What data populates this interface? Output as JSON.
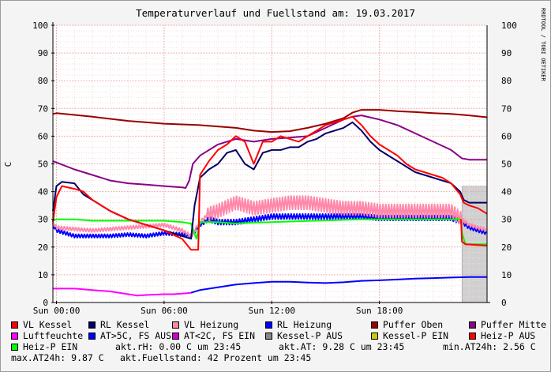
{
  "chart_data": {
    "type": "line",
    "title": "Temperaturverlauf und Fuellstand am: 19.03.2017",
    "ylabel": "C",
    "watermark": "RRDTOOL / TOBI OETIKER",
    "ylim": [
      0,
      100
    ],
    "yticks": [
      "0",
      "10",
      "20",
      "30",
      "40",
      "50",
      "60",
      "70",
      "80",
      "90",
      "100"
    ],
    "xlim": [
      -0.2,
      24
    ],
    "xticks": [
      {
        "x": 0,
        "label": "Sun 00:00"
      },
      {
        "x": 6,
        "label": "Sun 06:00"
      },
      {
        "x": 12,
        "label": "Sun 12:00"
      },
      {
        "x": 18,
        "label": "Sun 18:00"
      }
    ],
    "grid": true,
    "fuellstand_band": {
      "x0": 22.6,
      "x1": 24,
      "top": 42,
      "color": "#d0d0d0"
    },
    "series": [
      {
        "name": "Luftfeuchte",
        "color": "#ff00ff",
        "x": [
          -0.2,
          0,
          1,
          2,
          3,
          4,
          4.5,
          5,
          6,
          6.5,
          7,
          7.5
        ],
        "y": [
          5,
          5,
          5,
          4.5,
          4,
          3,
          2.5,
          2.7,
          3,
          3,
          3.2,
          3.5
        ]
      },
      {
        "name": "AT<2C, FS EIN",
        "color": "#0000ff",
        "x": [
          7.5,
          8,
          9,
          10,
          11,
          12,
          13,
          14,
          15,
          16,
          17,
          18,
          19,
          20,
          21,
          22,
          23,
          24
        ],
        "y": [
          3.5,
          4.5,
          5.5,
          6.5,
          7,
          7.5,
          7.5,
          7.2,
          7,
          7.3,
          7.8,
          8,
          8.3,
          8.6,
          8.8,
          9,
          9.2,
          9.2
        ]
      },
      {
        "name": "Puffer Oben",
        "color": "#990000",
        "x": [
          -0.2,
          0,
          2,
          4,
          6,
          8,
          10,
          11,
          12,
          13,
          14,
          15,
          16,
          16.5,
          17,
          18,
          19,
          20,
          21,
          22,
          23,
          24
        ],
        "y": [
          68,
          68.3,
          67,
          65.5,
          64.5,
          64,
          63,
          62,
          61.5,
          61.8,
          63,
          64.5,
          66.5,
          68.5,
          69.5,
          69.5,
          69,
          68.7,
          68.3,
          68,
          67.5,
          66.8
        ]
      },
      {
        "name": "Puffer Mitte",
        "color": "#880088",
        "x": [
          -0.2,
          0,
          1,
          2,
          3,
          4,
          5,
          6,
          7,
          7.2,
          7.4,
          7.6,
          8,
          9,
          10,
          11,
          12,
          13,
          14,
          15,
          16,
          16.5,
          17,
          18,
          19,
          20,
          21,
          22,
          22.6,
          23,
          24
        ],
        "y": [
          51,
          50.5,
          48,
          46,
          44,
          43,
          42.5,
          42,
          41.5,
          41.3,
          44,
          50,
          53,
          57,
          59,
          58,
          59,
          59.5,
          60,
          63,
          66,
          67,
          67.5,
          66,
          64,
          61,
          58,
          55,
          52,
          51.5,
          51.5
        ]
      },
      {
        "name": "VL Kessel",
        "color": "#ff0000",
        "x": [
          -0.2,
          0,
          0.3,
          1,
          1.5,
          2,
          3,
          4,
          5,
          6,
          7,
          7.5,
          7.9,
          8,
          8.5,
          9,
          9.5,
          10,
          10.5,
          11,
          11.5,
          12,
          12.5,
          13,
          13.5,
          14,
          14.5,
          15,
          15.5,
          16,
          16.5,
          17,
          17.5,
          18,
          18.5,
          19,
          19.5,
          20,
          20.5,
          21,
          21.5,
          22,
          22.5,
          22.7,
          23,
          23.5,
          24
        ],
        "y": [
          29,
          38,
          42,
          41,
          40,
          37,
          33,
          30,
          28,
          26,
          23,
          19,
          19,
          46,
          51,
          55,
          57,
          60,
          58,
          50,
          58,
          58,
          60,
          59,
          58,
          60,
          62,
          64,
          65,
          66,
          67,
          64,
          60,
          57,
          55,
          53,
          50,
          48,
          47,
          46,
          45,
          43,
          39,
          36,
          35,
          34,
          32
        ]
      },
      {
        "name": "RL Kessel",
        "color": "#000066",
        "x": [
          -0.2,
          0,
          0.3,
          1,
          1.5,
          2,
          3,
          4,
          5,
          6,
          7,
          7.5,
          7.7,
          8,
          8.5,
          9,
          9.5,
          10,
          10.5,
          11,
          11.5,
          12,
          12.5,
          13,
          13.5,
          14,
          14.5,
          15,
          15.5,
          16,
          16.5,
          17,
          17.5,
          18,
          18.5,
          19,
          19.5,
          20,
          20.5,
          21,
          21.5,
          22,
          22.5,
          22.7,
          23,
          23.5,
          24
        ],
        "y": [
          33,
          42,
          43.5,
          43,
          39,
          37,
          33,
          30,
          28,
          26,
          24,
          23,
          35,
          45,
          48,
          50,
          54,
          55,
          50,
          48,
          54,
          55,
          55,
          56,
          56,
          58,
          59,
          61,
          62,
          63,
          65,
          62,
          58,
          55,
          53,
          51,
          49,
          47,
          46,
          45,
          44,
          43,
          40,
          37,
          36,
          36,
          36
        ]
      },
      {
        "name": "VL Heizung",
        "color": "#ff88aa",
        "osc": true,
        "x": [
          -0.2,
          0,
          2,
          4,
          6,
          7,
          7.5,
          8,
          8.5,
          9,
          10,
          11,
          12,
          13,
          14,
          15,
          16,
          17,
          18,
          19,
          20,
          21,
          22,
          22.6,
          23,
          24
        ],
        "y": [
          29,
          27,
          26,
          27,
          28,
          26,
          24,
          29,
          32,
          33,
          36,
          34,
          35,
          36,
          36,
          35,
          34,
          34,
          33,
          33,
          33,
          33,
          33,
          30,
          28,
          26
        ]
      },
      {
        "name": "RL Heizung",
        "color": "#0000ff",
        "osc": true,
        "x": [
          -0.2,
          0,
          1,
          2,
          3,
          4,
          5,
          6,
          7,
          7.5,
          8,
          8.5,
          9,
          10,
          11,
          12,
          13,
          14,
          15,
          16,
          17,
          18,
          19,
          20,
          21,
          22,
          22.6,
          23,
          24
        ],
        "y": [
          28,
          26,
          24,
          24,
          24,
          24.5,
          24,
          25,
          24.5,
          24,
          28,
          30,
          29,
          29,
          30,
          31,
          31,
          31,
          31,
          31,
          31,
          30.5,
          30.5,
          30.5,
          30.5,
          30.5,
          29,
          27,
          25
        ]
      },
      {
        "name": "Heiz-P EIN",
        "color": "#00ff00",
        "x": [
          -0.2,
          0,
          1,
          2,
          3,
          4,
          5,
          6,
          7,
          7.5,
          7.8,
          8,
          9,
          10,
          11,
          12,
          13,
          14,
          15,
          16,
          17,
          18,
          19,
          20,
          21,
          22,
          22.55,
          22.6,
          22.8,
          24
        ],
        "y": [
          29.5,
          30,
          30,
          29.5,
          29.5,
          29.5,
          29.5,
          29.5,
          29,
          28.5,
          23,
          29,
          29,
          28.5,
          28.8,
          29,
          29.2,
          29.4,
          29.6,
          29.8,
          30,
          30,
          30,
          30,
          30,
          30,
          30,
          25,
          21,
          21
        ]
      },
      {
        "name": "Heiz-P AUS",
        "color": "#ff0000",
        "x": [
          22.55,
          22.6,
          22.8,
          24
        ],
        "y": [
          30,
          22,
          21,
          20.5
        ]
      }
    ]
  },
  "legend": {
    "rows": [
      [
        {
          "label": "VL Kessel",
          "color": "#ff0000"
        },
        {
          "label": "RL Kessel",
          "color": "#000066"
        },
        {
          "label": "VL Heizung",
          "color": "#ff88aa"
        },
        {
          "label": "RL Heizung",
          "color": "#0000ff"
        },
        {
          "label": "Puffer Oben",
          "color": "#990000"
        },
        {
          "label": "Puffer Mitte",
          "color": "#880088"
        }
      ],
      [
        {
          "label": "Luftfeuchte",
          "color": "#ff00ff"
        },
        {
          "label": "AT>5C, FS AUS",
          "color": "#0000ff"
        },
        {
          "label": "AT<2C, FS EIN",
          "color": "#cc00cc"
        },
        {
          "label": "Kessel-P AUS",
          "color": "#888888"
        },
        {
          "label": "Kessel-P EIN",
          "color": "#cccc00"
        },
        {
          "label": "Heiz-P AUS",
          "color": "#ff0000"
        }
      ]
    ],
    "row3": {
      "item": {
        "label": "Heiz-P EIN",
        "color": "#00ff00"
      },
      "stats": [
        "akt.rH: 0.00 C um 23:45",
        "akt.AT: 9.28 C um 23:45",
        "min.AT24h: 2.56 C"
      ]
    },
    "row4": {
      "stats": [
        "max.AT24h: 9.87 C",
        "akt.Fuellstand:   42 Prozent um 23:45"
      ]
    }
  }
}
